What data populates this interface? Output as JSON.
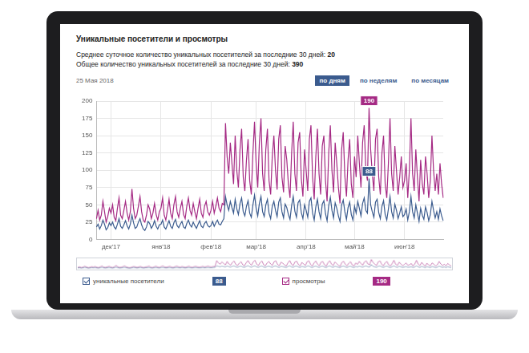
{
  "header": {
    "title": "Уникальные посетители и просмотры",
    "stats": [
      {
        "text": "Среднее суточное количество уникальных посетителей за последние 30 дней:",
        "value": 20
      },
      {
        "text": "Общее количество уникальных посетителей за последние 30 дней:",
        "value": 390
      }
    ],
    "date": "25 Мая 2018",
    "buttons": [
      {
        "label": "по дням",
        "active": true
      },
      {
        "label": "по неделям",
        "active": false
      },
      {
        "label": "по месяцам",
        "active": false
      }
    ]
  },
  "chart_data": {
    "type": "line",
    "categories": [
      null,
      null,
      null,
      null,
      null,
      null,
      null,
      null,
      null,
      "дек'17",
      null,
      null,
      null,
      null,
      null,
      null,
      null,
      null,
      null,
      null,
      null,
      null,
      null,
      null,
      null,
      null,
      null,
      null,
      null,
      null,
      null,
      null,
      null,
      null,
      null,
      null,
      null,
      null,
      null,
      null,
      "янв'18",
      null,
      null,
      null,
      null,
      null,
      null,
      null,
      null,
      null,
      null,
      null,
      null,
      null,
      null,
      null,
      null,
      null,
      null,
      null,
      null,
      null,
      null,
      null,
      null,
      null,
      null,
      null,
      null,
      null,
      null,
      "фев'18",
      null,
      null,
      null,
      null,
      null,
      null,
      null,
      null,
      null,
      null,
      null,
      null,
      null,
      null,
      null,
      null,
      null,
      null,
      null,
      null,
      null,
      null,
      null,
      null,
      null,
      null,
      null,
      "мар'18",
      null,
      null,
      null,
      null,
      null,
      null,
      null,
      null,
      null,
      null,
      null,
      null,
      null,
      null,
      null,
      null,
      null,
      null,
      null,
      null,
      null,
      null,
      null,
      null,
      null,
      null,
      null,
      null,
      null,
      null,
      "апр'18",
      null,
      null,
      null,
      null,
      null,
      null,
      null,
      null,
      null,
      null,
      null,
      null,
      null,
      null,
      null,
      null,
      null,
      null,
      null,
      null,
      null,
      null,
      null,
      null,
      null,
      null,
      null,
      null,
      null,
      "май'18",
      null,
      null,
      null,
      null,
      null,
      null,
      null,
      null,
      null,
      null,
      null,
      null,
      null,
      null,
      null,
      null,
      null,
      null,
      null,
      null,
      null,
      null,
      null,
      null,
      null,
      null,
      null,
      null,
      null,
      null,
      "июн'18",
      null,
      null,
      null,
      null,
      null,
      null,
      null,
      null,
      null,
      null,
      null,
      null,
      null,
      null,
      null,
      null,
      null,
      null,
      null,
      null,
      null,
      null,
      null,
      null
    ],
    "series": [
      {
        "name": "уникальные посетители",
        "color": "#3b5b8e",
        "values": [
          18,
          22,
          15,
          20,
          28,
          22,
          14,
          17,
          24,
          20,
          25,
          18,
          15,
          22,
          30,
          19,
          16,
          21,
          27,
          20,
          15,
          22,
          35,
          24,
          16,
          18,
          25,
          30,
          21,
          15,
          13,
          18,
          26,
          23,
          16,
          20,
          27,
          19,
          15,
          21,
          22,
          28,
          18,
          15,
          21,
          27,
          19,
          16,
          24,
          29,
          20,
          17,
          22,
          26,
          18,
          16,
          23,
          28,
          21,
          18,
          25,
          20,
          16,
          22,
          27,
          19,
          17,
          23,
          26,
          20,
          18,
          20,
          26,
          19,
          24,
          28,
          22,
          21,
          26,
          30,
          62,
          50,
          42,
          55,
          46,
          38,
          58,
          44,
          36,
          52,
          60,
          40,
          34,
          48,
          56,
          38,
          32,
          50,
          64,
          45,
          34,
          52,
          62,
          40,
          33,
          50,
          58,
          38,
          30,
          48,
          55,
          42,
          33,
          54,
          60,
          40,
          31,
          51,
          46,
          36,
          29,
          49,
          62,
          41,
          32,
          53,
          57,
          39,
          30,
          50,
          42,
          32,
          55,
          60,
          38,
          28,
          47,
          58,
          40,
          30,
          51,
          56,
          37,
          27,
          49,
          61,
          42,
          31,
          53,
          45,
          34,
          26,
          50,
          57,
          40,
          29,
          46,
          54,
          36,
          28,
          48,
          38,
          55,
          45,
          34,
          52,
          60,
          42,
          38,
          88,
          50,
          40,
          32,
          54,
          58,
          39,
          30,
          48,
          56,
          36,
          28,
          44,
          62,
          40,
          31,
          51,
          42,
          30,
          38,
          47,
          33,
          36,
          44,
          28,
          40,
          62,
          40,
          31,
          50,
          38,
          26,
          45,
          35,
          29,
          47,
          39,
          27,
          36,
          55,
          42,
          31,
          40,
          29,
          44,
          34,
          27
        ]
      },
      {
        "name": "просмотры",
        "color": "#a52a84",
        "values": [
          30,
          42,
          28,
          35,
          55,
          40,
          25,
          33,
          45,
          38,
          50,
          32,
          27,
          45,
          60,
          35,
          30,
          42,
          55,
          38,
          28,
          40,
          73,
          45,
          30,
          35,
          48,
          62,
          40,
          28,
          25,
          35,
          50,
          44,
          30,
          38,
          52,
          36,
          28,
          40,
          45,
          60,
          35,
          28,
          42,
          58,
          38,
          30,
          50,
          62,
          40,
          32,
          45,
          55,
          36,
          30,
          48,
          60,
          42,
          35,
          52,
          40,
          30,
          45,
          58,
          38,
          32,
          48,
          55,
          40,
          35,
          42,
          55,
          38,
          48,
          60,
          45,
          40,
          52,
          50,
          168,
          120,
          95,
          140,
          110,
          80,
          150,
          100,
          75,
          130,
          160,
          90,
          70,
          115,
          145,
          85,
          65,
          125,
          170,
          110,
          75,
          140,
          175,
          95,
          70,
          130,
          160,
          85,
          65,
          120,
          150,
          100,
          72,
          145,
          165,
          90,
          68,
          135,
          115,
          80,
          60,
          125,
          170,
          95,
          70,
          140,
          155,
          88,
          62,
          130,
          100,
          70,
          145,
          165,
          90,
          58,
          120,
          160,
          95,
          65,
          135,
          150,
          85,
          55,
          125,
          165,
          100,
          68,
          140,
          110,
          75,
          52,
          130,
          155,
          92,
          62,
          115,
          145,
          80,
          60,
          120,
          90,
          150,
          110,
          75,
          140,
          165,
          100,
          85,
          190,
          130,
          95,
          70,
          145,
          160,
          90,
          65,
          125,
          150,
          80,
          60,
          110,
          175,
          95,
          70,
          135,
          100,
          65,
          90,
          120,
          75,
          85,
          110,
          60,
          100,
          175,
          95,
          70,
          130,
          90,
          55,
          115,
          80,
          65,
          120,
          95,
          60,
          85,
          150,
          100,
          70,
          95,
          65,
          110,
          80,
          60
        ]
      }
    ],
    "ylim": [
      0,
      200
    ],
    "yticks": [
      0,
      25,
      50,
      75,
      100,
      125,
      150,
      175,
      200
    ],
    "grid": true,
    "legend": "bottom",
    "annotations": [
      {
        "series": "просмотры",
        "category_index": 169,
        "value": 190
      },
      {
        "series": "уникальные посетители",
        "category_index": 169,
        "value": 88
      }
    ]
  }
}
